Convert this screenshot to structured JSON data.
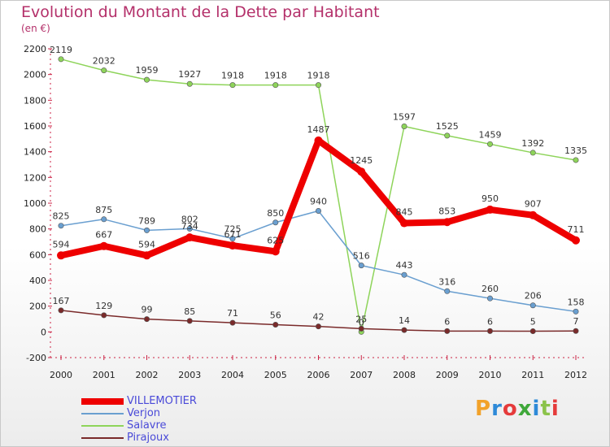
{
  "title": "Evolution du Montant de la Dette par Habitant",
  "unit_label": "(en €)",
  "brand": "Proxiti",
  "brand_colors": [
    "#f2a22a",
    "#2e8ad8",
    "#e53b3b",
    "#3fa83a",
    "#2e8ad8",
    "#8bc34a",
    "#e53b3b"
  ],
  "chart_data": {
    "type": "line",
    "title": "Evolution du Montant de la Dette par Habitant",
    "xlabel": "",
    "ylabel": "(en €)",
    "x": [
      "2000",
      "2001",
      "2002",
      "2003",
      "2004",
      "2005",
      "2006",
      "2007",
      "2008",
      "2009",
      "2010",
      "2011",
      "2012"
    ],
    "ylim": [
      -200,
      2200
    ],
    "yticks": [
      -200,
      0,
      200,
      400,
      600,
      800,
      1000,
      1200,
      1400,
      1600,
      1800,
      2000,
      2200
    ],
    "grid": false,
    "legend_position": "bottom-left",
    "series": [
      {
        "name": "VILLEMOTIER",
        "color": "#ee0000",
        "emphasis": true,
        "values": [
          594,
          667,
          594,
          734,
          671,
          625,
          1487,
          1245,
          845,
          853,
          950,
          907,
          711
        ],
        "labels": [
          "594",
          "667",
          "594",
          "734",
          "671",
          "625",
          "1487",
          "1245",
          "845",
          "853",
          "950",
          "907",
          "711"
        ]
      },
      {
        "name": "Verjon",
        "color": "#6a9fd0",
        "emphasis": false,
        "values": [
          825,
          875,
          789,
          802,
          725,
          850,
          940,
          516,
          443,
          316,
          260,
          206,
          158
        ],
        "labels": [
          "825",
          "875",
          "789",
          "802",
          "725",
          "850",
          "940",
          "516",
          "443",
          "316",
          "260",
          "206",
          "158"
        ]
      },
      {
        "name": "Salavre",
        "color": "#8ed45a",
        "emphasis": false,
        "values": [
          2119,
          2032,
          1959,
          1927,
          1918,
          1918,
          1918,
          0,
          1597,
          1525,
          1459,
          1392,
          1335
        ],
        "labels": [
          "2119",
          "2032",
          "1959",
          "1927",
          "1918",
          "1918",
          "1918",
          "0",
          "1597",
          "1525",
          "1459",
          "1392",
          "1335"
        ]
      },
      {
        "name": "Pirajoux",
        "color": "#7a2a2a",
        "emphasis": false,
        "values": [
          167,
          129,
          99,
          85,
          71,
          56,
          42,
          25,
          14,
          6,
          6,
          5,
          7
        ],
        "labels": [
          "167",
          "129",
          "99",
          "85",
          "71",
          "56",
          "42",
          "25",
          "14",
          "6",
          "6",
          "5",
          "7"
        ]
      }
    ]
  }
}
